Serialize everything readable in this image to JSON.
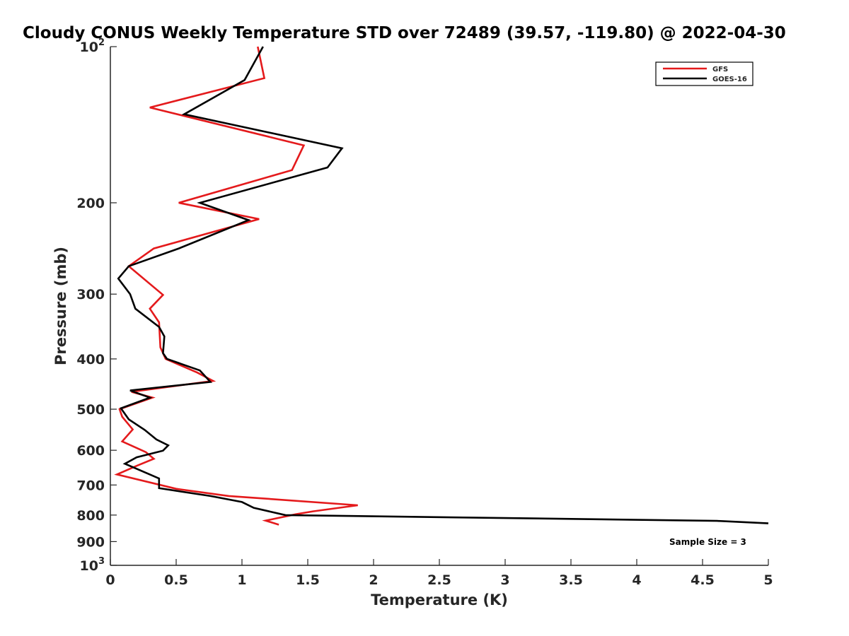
{
  "chart_data": {
    "type": "line",
    "title": "Cloudy CONUS Weekly Temperature STD over 72489 (39.57, -119.80) @ 2022-04-30",
    "xlabel": "Temperature (K)",
    "ylabel": "Pressure (mb)",
    "xlim": [
      0,
      5
    ],
    "ylim": [
      100,
      1000
    ],
    "y_scale": "log",
    "y_reversed": true,
    "grid": false,
    "legend_position": "top-right",
    "x_ticks": [
      0,
      0.5,
      1,
      1.5,
      2,
      2.5,
      3,
      3.5,
      4,
      4.5,
      5
    ],
    "x_tick_labels": [
      "0",
      "0.5",
      "1",
      "1.5",
      "2",
      "2.5",
      "3",
      "3.5",
      "4",
      "4.5",
      "5"
    ],
    "y_ticks": [
      100,
      200,
      300,
      400,
      500,
      600,
      700,
      800,
      900,
      1000
    ],
    "y_tick_labels": [
      {
        "base": "10",
        "exp": "2"
      },
      {
        "base": "200",
        "exp": ""
      },
      {
        "base": "300",
        "exp": ""
      },
      {
        "base": "400",
        "exp": ""
      },
      {
        "base": "500",
        "exp": ""
      },
      {
        "base": "600",
        "exp": ""
      },
      {
        "base": "700",
        "exp": ""
      },
      {
        "base": "800",
        "exp": ""
      },
      {
        "base": "900",
        "exp": ""
      },
      {
        "base": "10",
        "exp": "3"
      }
    ],
    "annotation": "Sample Size = 3",
    "series": [
      {
        "name": "GFS",
        "color": "#e41a1c",
        "points": [
          [
            1.12,
            100
          ],
          [
            1.17,
            115
          ],
          [
            0.3,
            131
          ],
          [
            1.47,
            155
          ],
          [
            1.38,
            173
          ],
          [
            0.52,
            200
          ],
          [
            1.13,
            215
          ],
          [
            0.33,
            245
          ],
          [
            0.14,
            265
          ],
          [
            0.4,
            301
          ],
          [
            0.3,
            320
          ],
          [
            0.37,
            340
          ],
          [
            0.38,
            380
          ],
          [
            0.42,
            400
          ],
          [
            0.66,
            425
          ],
          [
            0.78,
            441
          ],
          [
            0.16,
            463
          ],
          [
            0.32,
            475
          ],
          [
            0.07,
            500
          ],
          [
            0.09,
            517
          ],
          [
            0.17,
            547
          ],
          [
            0.09,
            577
          ],
          [
            0.27,
            605
          ],
          [
            0.33,
            623
          ],
          [
            0.2,
            643
          ],
          [
            0.05,
            668
          ],
          [
            0.5,
            712
          ],
          [
            0.9,
            735
          ],
          [
            1.88,
            766
          ],
          [
            1.54,
            787
          ],
          [
            1.41,
            797
          ],
          [
            1.18,
            820
          ],
          [
            1.28,
            835
          ]
        ]
      },
      {
        "name": "GOES-16",
        "color": "#000000",
        "points": [
          [
            1.16,
            100
          ],
          [
            1.02,
            116
          ],
          [
            0.56,
            135
          ],
          [
            1.76,
            157
          ],
          [
            1.65,
            171
          ],
          [
            0.68,
            200
          ],
          [
            1.05,
            216
          ],
          [
            0.52,
            245
          ],
          [
            0.14,
            265
          ],
          [
            0.06,
            280
          ],
          [
            0.15,
            300
          ],
          [
            0.19,
            320
          ],
          [
            0.37,
            347
          ],
          [
            0.41,
            362
          ],
          [
            0.4,
            390
          ],
          [
            0.43,
            400
          ],
          [
            0.68,
            421
          ],
          [
            0.76,
            443
          ],
          [
            0.15,
            460
          ],
          [
            0.3,
            475
          ],
          [
            0.08,
            498
          ],
          [
            0.14,
            523
          ],
          [
            0.26,
            548
          ],
          [
            0.35,
            572
          ],
          [
            0.44,
            587
          ],
          [
            0.4,
            601
          ],
          [
            0.2,
            619
          ],
          [
            0.11,
            637
          ],
          [
            0.3,
            668
          ],
          [
            0.37,
            680
          ],
          [
            0.37,
            710
          ],
          [
            0.76,
            735
          ],
          [
            1.0,
            755
          ],
          [
            1.09,
            775
          ],
          [
            1.33,
            800
          ],
          [
            4.61,
            821
          ],
          [
            5.0,
            830
          ]
        ]
      }
    ]
  }
}
